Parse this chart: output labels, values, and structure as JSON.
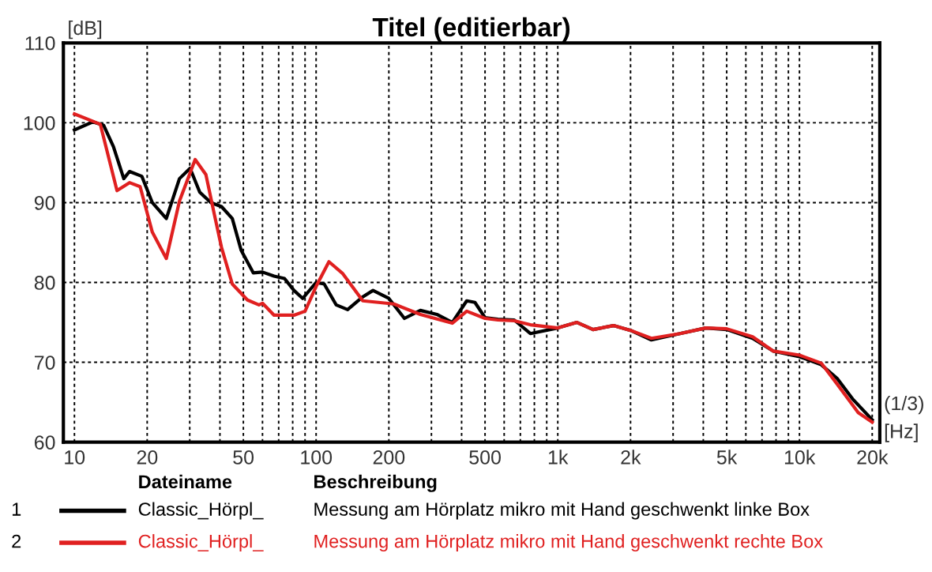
{
  "chart_data": {
    "type": "line",
    "title": "Titel (editierbar)",
    "ylabel": "[dB]",
    "xlabel": "[Hz]",
    "legend_title": "Dateiname",
    "annotations": [
      "(1/3)",
      "Beschreibung",
      "Messung am Hörplatz mikro mit Hand geschwenkt linke Box",
      "Messung am Hörplatz mikro mit Hand geschwenkt rechte Box",
      "1",
      "2"
    ],
    "log": "x",
    "xlim": [
      9,
      21500
    ],
    "ylim": [
      60,
      110
    ],
    "yticks": [
      60,
      70,
      80,
      90,
      100,
      110
    ],
    "xticks": [
      10,
      20,
      {
        "value": 30,
        "label": null
      },
      {
        "value": 40,
        "label": null
      },
      50,
      {
        "value": 60,
        "label": null
      },
      {
        "value": 70,
        "label": null
      },
      {
        "value": 80,
        "label": null
      },
      {
        "value": 90,
        "label": null
      },
      100,
      200,
      {
        "value": 300,
        "label": null
      },
      {
        "value": 400,
        "label": null
      },
      500,
      {
        "value": 600,
        "label": null
      },
      {
        "value": 700,
        "label": null
      },
      {
        "value": 800,
        "label": null
      },
      {
        "value": 900,
        "label": null
      },
      {
        "value": 1000,
        "label": "1k"
      },
      {
        "value": 2000,
        "label": "2k"
      },
      {
        "value": 3000,
        "label": null
      },
      {
        "value": 4000,
        "label": null
      },
      {
        "value": 5000,
        "label": "5k"
      },
      {
        "value": 6000,
        "label": null
      },
      {
        "value": 7000,
        "label": null
      },
      {
        "value": 8000,
        "label": null
      },
      {
        "value": 9000,
        "label": null
      },
      {
        "value": 10000,
        "label": "10k"
      },
      {
        "value": 20000,
        "label": "20k"
      }
    ],
    "grid": true,
    "legend": "bottom",
    "line_style": "solid",
    "marker": "none",
    "series": [
      {
        "name": "Classic_Hörpl_",
        "color": "#000000",
        "x": [
          10,
          11.9,
          13.2,
          14.5,
          16,
          16.9,
          19,
          21,
          24,
          27.2,
          30.1,
          33,
          36.7,
          40.6,
          45,
          49,
          55,
          60,
          67,
          74,
          81,
          88,
          100,
          108,
          121,
          135,
          156,
          172,
          200,
          232,
          270,
          316,
          366,
          420,
          454,
          500,
          565,
          660,
          770,
          1000,
          1200,
          1400,
          1700,
          2000,
          2440,
          3200,
          4100,
          5000,
          6400,
          7800,
          10000,
          12300,
          14300,
          16600,
          20000
        ],
        "values": [
          99.1,
          100.1,
          99.7,
          97,
          93,
          93.9,
          93.3,
          90,
          88,
          93,
          94.3,
          91.3,
          90,
          89.5,
          88,
          84,
          81.2,
          81.3,
          80.8,
          80.5,
          79,
          78,
          80,
          79.8,
          77.2,
          76.6,
          78.2,
          79,
          78,
          75.5,
          76.5,
          76,
          75,
          77.7,
          77.5,
          75.6,
          75.4,
          75.3,
          73.6,
          74.3,
          75,
          74.1,
          74.6,
          74,
          72.8,
          73.6,
          74.3,
          74.1,
          73,
          71.4,
          70.7,
          69.7,
          68,
          65.4,
          62.8
        ]
      },
      {
        "name": "Classic_Hörpl_",
        "color": "#e02020",
        "x": [
          10,
          11.9,
          12.8,
          15,
          16.9,
          18.7,
          21,
          24,
          27.2,
          31.6,
          35,
          38,
          40.6,
          45,
          52,
          58,
          60,
          67,
          81,
          90,
          100,
          113,
          129,
          156,
          181,
          210,
          270,
          366,
          420,
          500,
          565,
          660,
          770,
          1000,
          1200,
          1400,
          1700,
          2000,
          2440,
          3200,
          4100,
          5000,
          6400,
          7800,
          10000,
          12300,
          14300,
          17500,
          20000
        ],
        "values": [
          101.1,
          100.2,
          99.8,
          91.5,
          92.5,
          92,
          86.3,
          83,
          90.2,
          95.4,
          93.5,
          88.4,
          84.4,
          79.8,
          77.8,
          77.2,
          77.4,
          75.9,
          75.9,
          76.4,
          79.5,
          82.6,
          81.1,
          77.7,
          77.5,
          77.3,
          76,
          74.9,
          76.4,
          75.5,
          75.3,
          75.2,
          74.7,
          74.3,
          75,
          74.1,
          74.6,
          74,
          73,
          73.6,
          74.3,
          74.2,
          73.2,
          71.4,
          70.9,
          69.9,
          67.3,
          63.7,
          62.5
        ]
      }
    ]
  }
}
